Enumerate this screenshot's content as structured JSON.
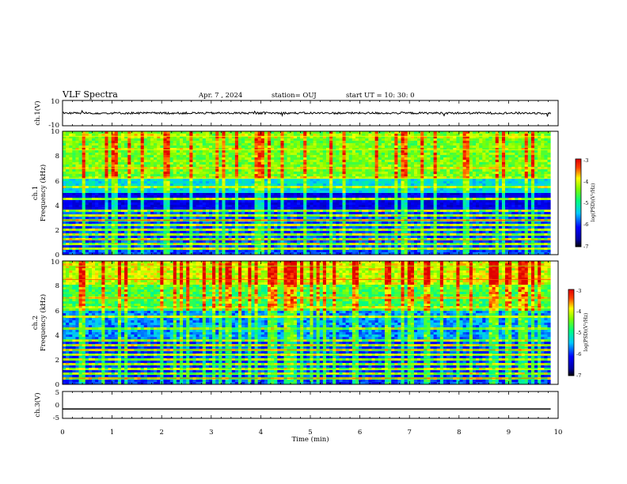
{
  "header": {
    "title": "VLF Spectra",
    "date": "Apr. 7 , 2024",
    "station": "station= OUJ",
    "start": "start  UT  =   10: 30: 0"
  },
  "chart_data": [
    {
      "type": "line",
      "ylabel": "ch.1(V)",
      "ylim": [
        -10,
        10
      ],
      "yticks": [
        "10",
        "-10"
      ],
      "series": [
        {
          "baseline": 0
        }
      ]
    },
    {
      "type": "heatmap",
      "ylabel": "ch.1",
      "ylabel2": "Frequency  (kHz)",
      "ylim": [
        0,
        10
      ],
      "yticks": [
        "0",
        "2",
        "4",
        "6",
        "8",
        "10"
      ],
      "colorbar": {
        "label": "log(PSD)(V²/Hz)",
        "ticks": [
          "-3",
          "-4",
          "-5",
          "-6",
          "-7"
        ],
        "range": [
          -7,
          -3
        ]
      }
    },
    {
      "type": "heatmap",
      "ylabel": "ch.2",
      "ylabel2": "Frequency  (kHz)",
      "ylim": [
        0,
        10
      ],
      "yticks": [
        "0",
        "2",
        "4",
        "6",
        "8",
        "10"
      ],
      "colorbar": {
        "label": "log(PSD)(V²/Hz)",
        "ticks": [
          "-3",
          "-4",
          "-5",
          "-6",
          "-7"
        ],
        "range": [
          -7,
          -3
        ]
      }
    },
    {
      "type": "line",
      "ylabel": "ch.3(V)",
      "ylim": [
        -5,
        5
      ],
      "yticks": [
        "5",
        "0",
        "-5"
      ],
      "series": [
        {
          "constant": -1.5
        }
      ]
    }
  ],
  "xaxis": {
    "label": "Time  (min)",
    "range": [
      0,
      10
    ],
    "ticks": [
      "0",
      "1",
      "2",
      "3",
      "4",
      "5",
      "6",
      "7",
      "8",
      "9",
      "10"
    ],
    "data_end": 9.85
  }
}
